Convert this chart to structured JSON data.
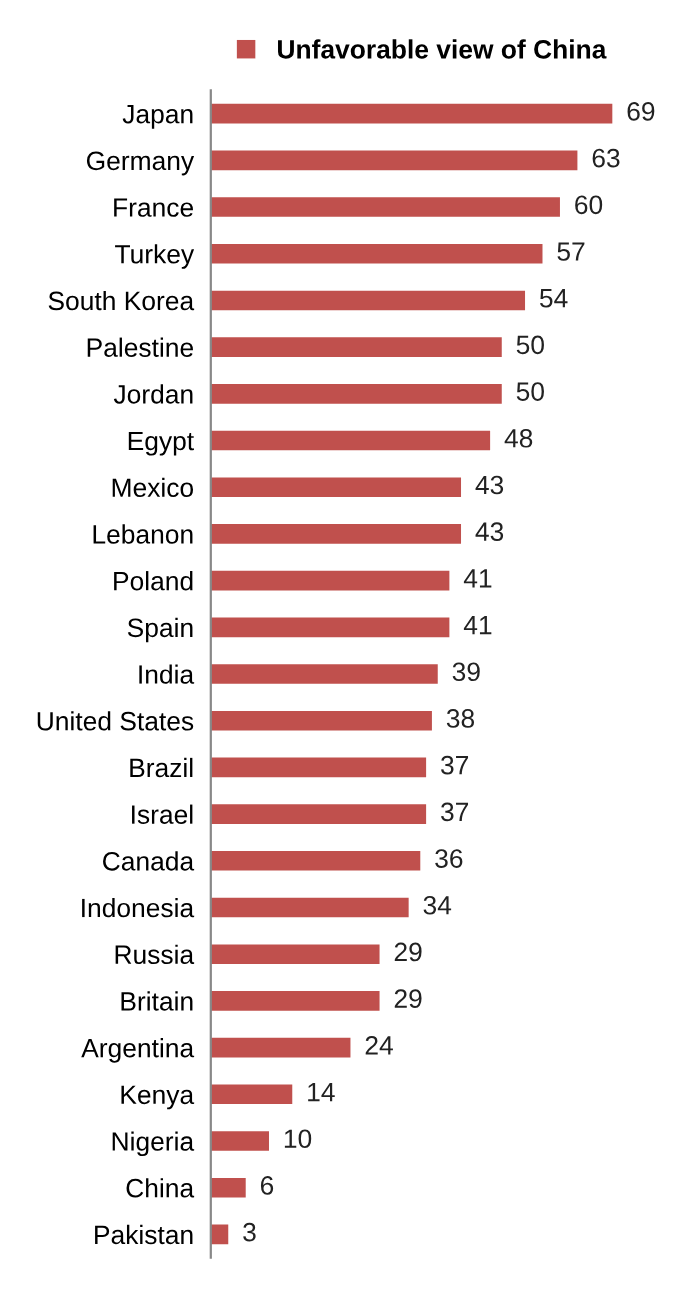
{
  "chart_data": {
    "type": "bar",
    "orientation": "horizontal",
    "data_labels": true,
    "legend": "top",
    "grid": false,
    "categories": [
      "Japan",
      "Germany",
      "France",
      "Turkey",
      "South Korea",
      "Palestine",
      "Jordan",
      "Egypt",
      "Mexico",
      "Lebanon",
      "Poland",
      "Spain",
      "India",
      "United States",
      "Brazil",
      "Israel",
      "Canada",
      "Indonesia",
      "Russia",
      "Britain",
      "Argentina",
      "Kenya",
      "Nigeria",
      "China",
      "Pakistan"
    ],
    "series": [
      {
        "name": "Unfavorable view of China",
        "color": "#c0504d",
        "values": [
          69,
          63,
          60,
          57,
          54,
          50,
          50,
          48,
          43,
          43,
          41,
          41,
          39,
          38,
          37,
          37,
          36,
          34,
          29,
          29,
          24,
          14,
          10,
          6,
          3
        ]
      }
    ]
  }
}
